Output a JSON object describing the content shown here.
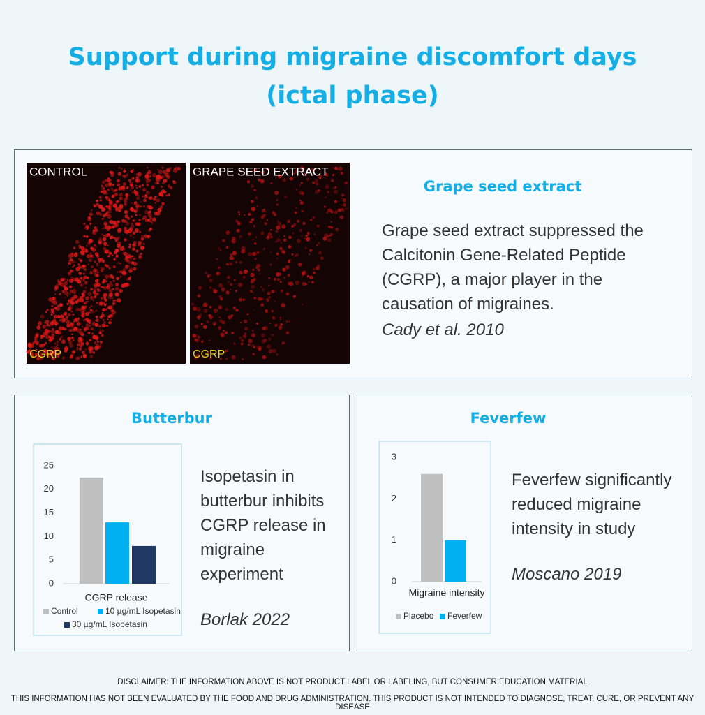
{
  "title": [
    "Support during migraine discomfort days",
    "(ictal phase)"
  ],
  "grape_seed": {
    "heading": "Grape seed extract",
    "text": "Grape seed extract suppressed the Calcitonin Gene-Related Peptide (CGRP), a major player in the causation of migraines.",
    "citation": "Cady et al. 2010",
    "image_labels": [
      "CONTROL",
      "GRAPE SEED EXTRACT"
    ],
    "image_markers": [
      "CGRP",
      "CGRP"
    ]
  },
  "panels": [
    {
      "heading": "Butterbur",
      "text": "Isopetasin in butterbur inhibits CGRP release in migraine experiment",
      "citation": "Borlak 2022"
    },
    {
      "heading": "Feverfew",
      "text": "Feverfew significantly reduced migraine intensity in study",
      "citation": "Moscano 2019"
    }
  ],
  "chart_data": [
    {
      "type": "bar",
      "categories": [
        "CGRP release"
      ],
      "series": [
        {
          "name": "Control",
          "color": "#bfbfbf",
          "values": [
            22.5
          ]
        },
        {
          "name": "10 µg/mL Isopetasin",
          "color": "#00b0f0",
          "values": [
            13
          ]
        },
        {
          "name": "30 µg/mL Isopetasin",
          "color": "#203864",
          "values": [
            8
          ]
        }
      ],
      "ylim": [
        0,
        25
      ],
      "yticks": [
        0,
        5,
        10,
        15,
        20,
        25
      ]
    },
    {
      "type": "bar",
      "categories": [
        "Migraine intensity"
      ],
      "series": [
        {
          "name": "Placebo",
          "color": "#bfbfbf",
          "values": [
            2.6
          ]
        },
        {
          "name": "Feverfew",
          "color": "#00b0f0",
          "values": [
            1
          ]
        }
      ],
      "ylim": [
        0,
        3
      ],
      "yticks": [
        0,
        1,
        2,
        3
      ]
    }
  ],
  "disclaimer": [
    "DISCLAIMER: THE INFORMATION ABOVE IS NOT PRODUCT LABEL OR LABELING, BUT CONSUMER EDUCATION MATERIAL",
    "THIS INFORMATION HAS NOT BEEN EVALUATED BY THE FOOD AND DRUG ADMINISTRATION. THIS PRODUCT IS NOT INTENDED TO DIAGNOSE, TREAT, CURE, OR PREVENT ANY DISEASE"
  ]
}
